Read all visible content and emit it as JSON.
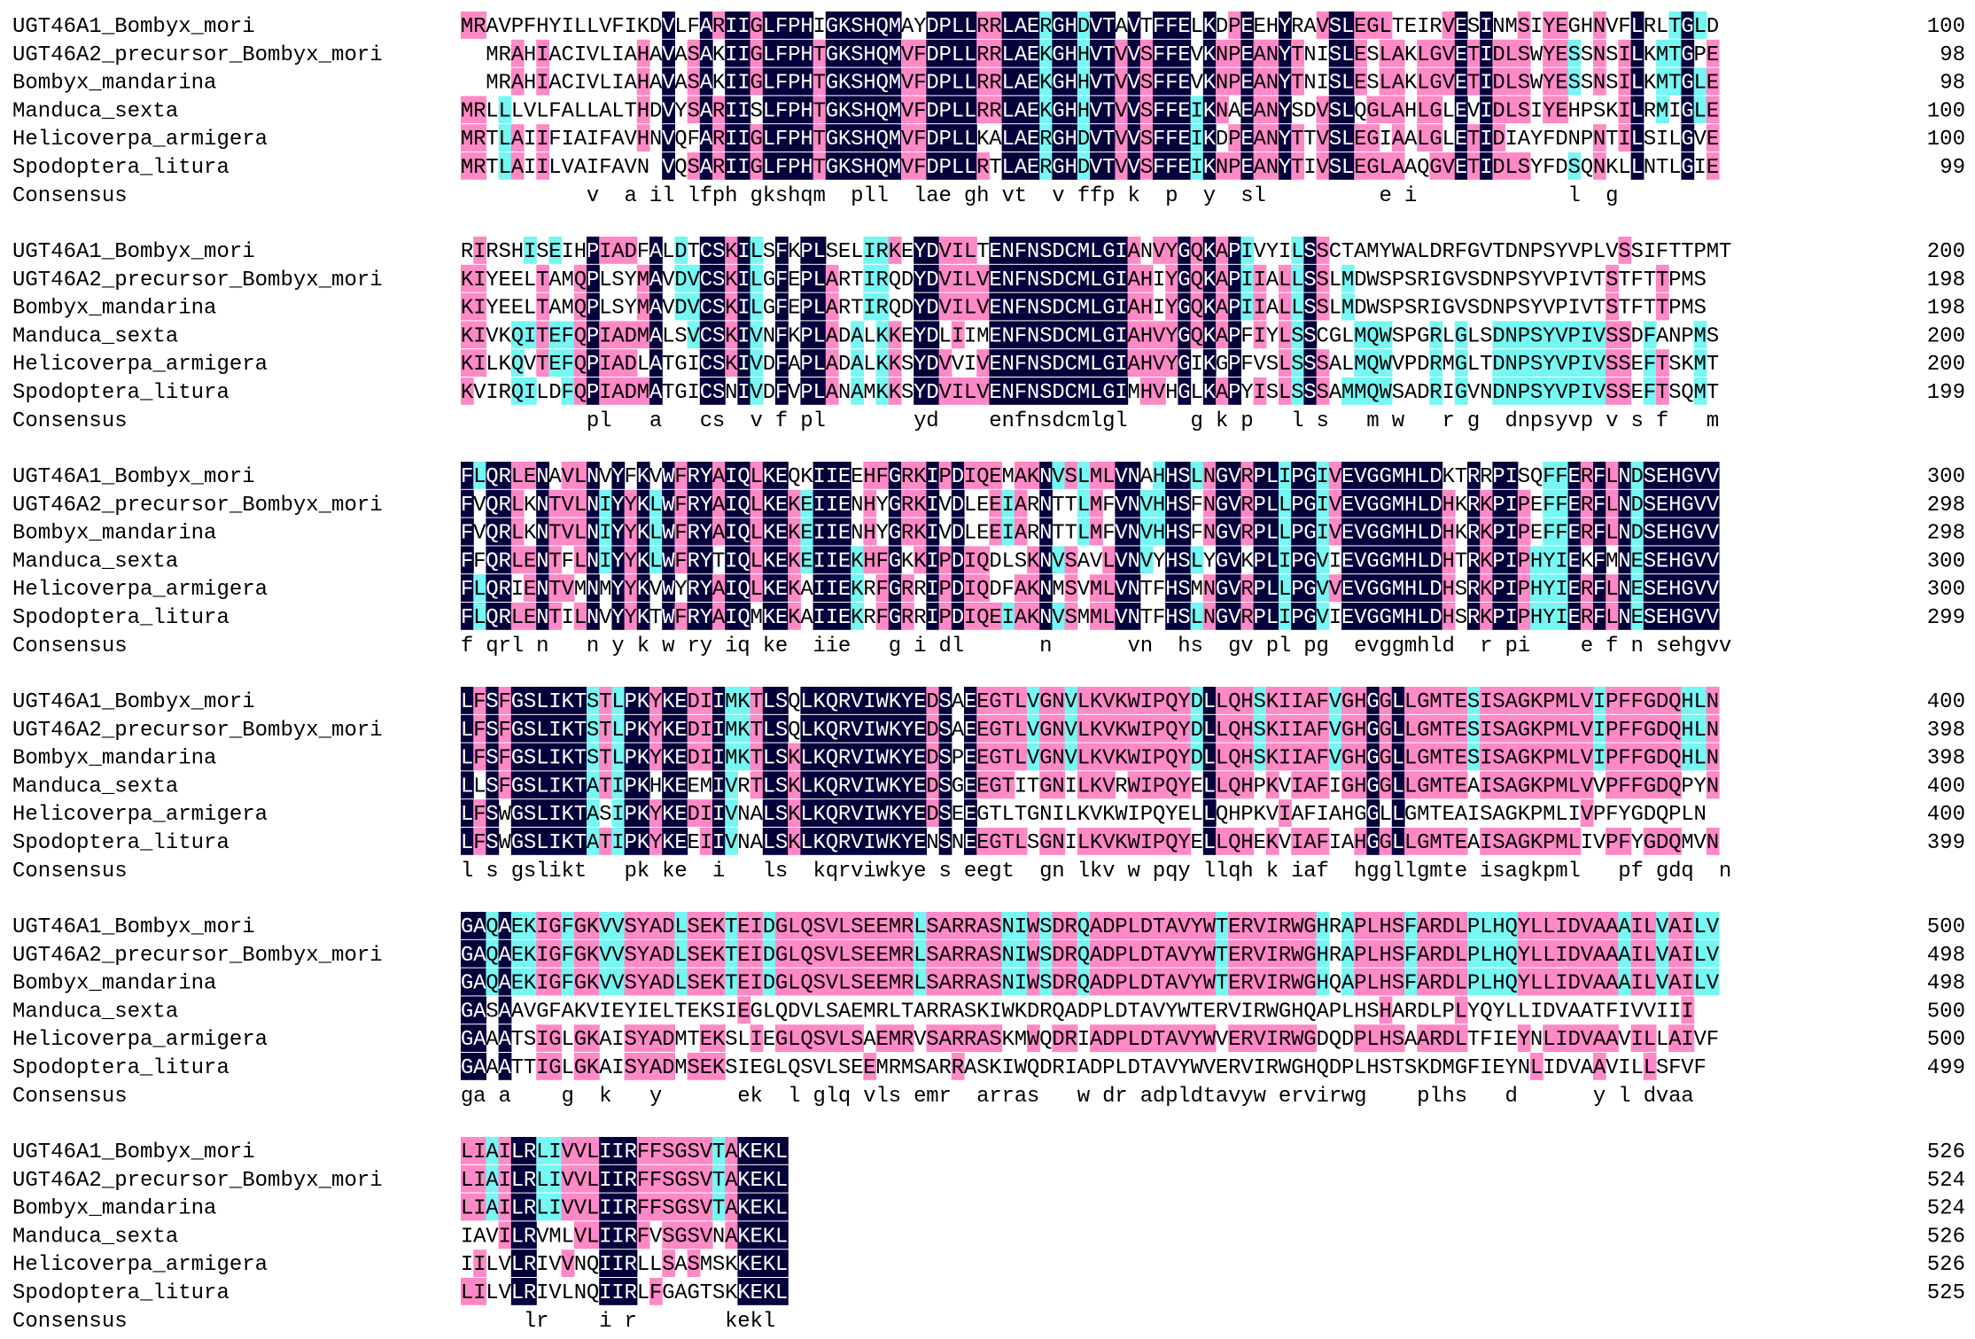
{
  "colors": {
    "identical_bg": "#03003b",
    "identical_fg": "#ffffff",
    "high_bg": "#ff88c6",
    "medium_bg": "#75f7f3",
    "default_fg": "#000000"
  },
  "consensus_label": "Consensus",
  "blocks": [
    {
      "rows": [
        {
          "name": "UGT46A1_Bombyx_mori",
          "seq": "MRAVPFHYILLVFIKDVLFARIIGLFPHIGKSHQMAYDPLLRRLAERGHDVTAVTFFELKDPEEHYRAVSLEGLTEIRVESINMSIYEGHNVFLRLTGLD",
          "end": "100"
        },
        {
          "name": "UGT46A2_precursor_Bombyx_mori",
          "seq": "..MRAHIACIVLIAHAVASAKIIGLFPHTGKSHQMVFDPLLRRLAEKGHHVTVVSFFEVKNPEANYTNISLESLAKLGVETIDLSWYESSNSILKMTGPE",
          "end": "98"
        },
        {
          "name": "Bombyx_mandarina",
          "seq": "..MRAHIACIVLIAHAVASAKIIGLFPHTGKSHQMVFDPLLRRLAEKGHHVTVVSFFEVKNPEANYTNISLESLAKLGVETIDLSWYESSNSILKMTGLE",
          "end": "98"
        },
        {
          "name": "Manduca_sexta",
          "seq": "MRLLLVLFALLALTHDVYSARIISLFPHTGKSHQMVFDPLLRRLAEKGHHVTVVSFFEIKNAEANYSDVSLQGLAHLGLEVIDLSIYEHPSKILRMIGLE",
          "end": "100"
        },
        {
          "name": "Helicoverpa_armigera",
          "seq": "MRTLAIIFIAIFAVHNVQFARIIGLFPHTGKSHQMVFDPLLKALAERGHDVTVVSFFEIKDPEANYTTVSLEGIAALGLETIDIAYFDNPNTILSILGVE",
          "end": "100"
        },
        {
          "name": "Spodoptera_litura",
          "seq": "MRTLAIILVAIFAVN.VQSARIIGLFPHTGKSHQMVFDPLLRTLAERGHDVTVVSFFEIKNPEANYTIVSLEGLAAQGVETIDLSYFDSQNKLLNTLGIE",
          "end": "99"
        }
      ],
      "consensus": "          v  a il lfph gkshqm  pll  lae gh vt  v ffp k  p  y  sl         e i            l  g  "
    },
    {
      "rows": [
        {
          "name": "UGT46A1_Bombyx_mori",
          "seq": "RIRSHISEIHPIADFALDTCSKILSFKPLSELIRKEYDVILTENFNSDCMLGIANVYGQKAPIVYILSSCTAMYWALDRFGVTDNPSYVPLVSSIFTTPMT",
          "end": "200"
        },
        {
          "name": "UGT46A2_precursor_Bombyx_mori",
          "seq": "KIYEELTAMQPLSYMAVDVCSKILGFEPLARTIRQDYDVILVENFNSDCMLGIAHIYGQKAPIIALLSSLMDWSPSRIGVSDNPSYVPIVTSTFTTPMS",
          "end": "198"
        },
        {
          "name": "Bombyx_mandarina",
          "seq": "KIYEELTAMQPLSYMAVDVCSKILGFEPLARTIRQDYDVILVENFNSDCMLGIAHIYGQKAPIIALLSSLMDWSPSRIGVSDNPSYVPIVTSTFTTPMS",
          "end": "198"
        },
        {
          "name": "Manduca_sexta",
          "seq": "KIVKQITEFQPIADMALSVCSKIVNFKPLADALKKEYDLIIMENFNSDCMLGIAHVYGQKAPFIYLSSCGLMQWSPGRLGLSDNPSYVPIVSSDFANPMS",
          "end": "200"
        },
        {
          "name": "Helicoverpa_armigera",
          "seq": "KILKQVTEFQPIADLATGICSKIVDFAPLADALKKSYDVVIVENFNSDCMLGIAHVYGIKGPFVSLSSSALMQWVPDRMGLTDNPSYVPIVSSEFTSKMT",
          "end": "200"
        },
        {
          "name": "Spodoptera_litura",
          "seq": "KVIRQILDFQPIADMATGICSNIVDFVPLANAMKKSYDVILVENFNSDCMLGIMHVHGLKAPYISLSSSAMMQWSADRIGVNDNPSYVPIVSSEFTSQMT",
          "end": "199"
        }
      ],
      "consensus": "          pl   a   cs  v f pl       yd    enfnsdcmlgl     g k p   l s   m w   r g  dnpsyvp v s f   m "
    },
    {
      "rows": [
        {
          "name": "UGT46A1_Bombyx_mori",
          "seq": "FLQRLENAVLNVYFKVWFRYAIQLKEQKIIEEHFGRKIPDIQEMAKNVSLMLVNAHHSLNGVRPLIPGIVEVGGMHLDKTRRPISQFFERFLNDSEHGVV",
          "end": "300"
        },
        {
          "name": "UGT46A2_precursor_Bombyx_mori",
          "seq": "FVQRLKNTVLNIYYKLWFRYAIQLKEKEIIENHYGRKIVDLEEIARNTTLMFVNVHHSFNGVRPLLPGIVEVGGMHLDHKRKPIPEFFERFLNDSEHGVV",
          "end": "298"
        },
        {
          "name": "Bombyx_mandarina",
          "seq": "FVQRLKNTVLNIYYKLWFRYAIQLKEKEIIENHYGRKIVDLEEIARNTTLMFVNVHHSFNGVRPLLPGIVEVGGMHLDHKRKPIPEFFERFLNDSEHGVV",
          "end": "298"
        },
        {
          "name": "Manduca_sexta",
          "seq": "FFQRLENTFLNIYYKLWFRYTIQLKEKEIIEKHFGKKIPDIQDLSKNVSAVLVNVYHSLYGVKPLIPGVIEVGGMHLDHTRKPIPHYIEKFMNESEHGVV",
          "end": "300"
        },
        {
          "name": "Helicoverpa_armigera",
          "seq": "FLQRIENTVMNMYYKVWYRYAIQLKEKAIIEKRFGRRIPDIQDFAKNMSVMLVNTFHSMNGVRPLLPGVVEVGGMHLDHSRKPIPHYIERFLNESEHGVV",
          "end": "300"
        },
        {
          "name": "Spodoptera_litura",
          "seq": "FLQRLENTILNVYYKTWFRYAIQMKEKAIIEKRFGRRIPDIQEIAKNVSMMLVNTFHSLNGVRPLIPGVIEVGGMHLDHSRKPIPHYIERFLNESEHGVV",
          "end": "299"
        }
      ],
      "consensus": "f qrl n   n y k w ry iq ke  iie   g i dl      n      vn  hs  gv pl pg  evggmhld  r pi    e f n sehgvv"
    },
    {
      "rows": [
        {
          "name": "UGT46A1_Bombyx_mori",
          "seq": "LFSFGSLIKTSTLPKYKEDIIMKTLSQLKQRVIWKYEDSAEEGTLVGNVLKVKWIPQYDLLQHSKIIAFVGHGGLLGMTESISAGKPMLVIPFFGDQHLN",
          "end": "400"
        },
        {
          "name": "UGT46A2_precursor_Bombyx_mori",
          "seq": "LFSFGSLIKTSTLPKYKEDIIMKTLSQLKQRVIWKYEDSAEEGTLVGNVLKVKWIPQYDLLQHSKIIAFVGHGGLLGMTESISAGKPMLVIPFFGDQHLN",
          "end": "398"
        },
        {
          "name": "Bombyx_mandarina",
          "seq": "LFSFGSLIKTSTLPKYKEDIIMKTLSKLKQRVIWKYEDSPEEGTLVGNVLKVKWIPQYDLLQHSKIIAFVGHGGLLGMTESISAGKPMLVIPFFGDQHLN",
          "end": "398"
        },
        {
          "name": "Manduca_sexta",
          "seq": "LLSFGSLIKTATIPKHKEEMIVRTLSKLKQRVIWKYEDSGEEGTITGNILKVRWIPQYELLQHPKVIAFIGHGGLLGMTEAISAGKPMLVVPFFGDQPYN",
          "end": "400"
        },
        {
          "name": "Helicoverpa_armigera",
          "seq": "LFSWGSLIKTASIPKYKEDIIVNALSKLKQRVIWKYEDSEEGTLTGNILKVKWIPQYELLQHPKVIAFIAHGGLLGMTEAISAGKPMLIVPFYGDQPLN",
          "end": "400"
        },
        {
          "name": "Spodoptera_litura",
          "seq": "LFSWGSLIKTATIPKYKEEIIVNALSKLKQRVIWKYENSNEEGTLSGNILKVKWIPQYELLQHEKVIAFIAHGGLLGMTEAISAGKPMLIVPFYGDQMVN",
          "end": "399"
        }
      ],
      "consensus": "l s gslikt   pk ke  i   ls  kqrviwkye s eegt  gn lkv w pqy llqh k iaf  hggllgmte isagkpml   pf gdq  n"
    },
    {
      "rows": [
        {
          "name": "UGT46A1_Bombyx_mori",
          "seq": "GAQAEKIGFGKVVSYADLSEKTEIDGLQSVLSEEMRLSARRASNIWSDRQADPLDTAVYWTERVIRWGHRAPLHSFARDLPLHQYLLIDVAAAILVAILV",
          "end": "500"
        },
        {
          "name": "UGT46A2_precursor_Bombyx_mori",
          "seq": "GAQAEKIGFGKVVSYADLSEKTEIDGLQSVLSEEMRLSARRASNIWSDRQADPLDTAVYWTERVIRWGHRAPLHSFARDLPLHQYLLIDVAAAILVAILV",
          "end": "498"
        },
        {
          "name": "Bombyx_mandarina",
          "seq": "GAQAEKIGFGKVVSYADLSEKTEIDGLQSVLSEEMRLSARRASNIWSDRQADPLDTAVYWTERVIRWGHQAPLHSFARDLPLHQYLLIDVAAAILVAILV",
          "end": "498"
        },
        {
          "name": "Manduca_sexta",
          "seq": "GASAAVGFAKVIEYIELTEKSIEGLQDVLSAEMRLTARRASKIWKDRQADPLDTAVYWTERVIRWGHQAPLHSHARDLPLYQYLLIDVAATFIVVIII",
          "end": "500"
        },
        {
          "name": "Helicoverpa_armigera",
          "seq": "GAAATSIGLGKAISYADMTEKSLIEGLQSVLSAEMRVSARRASKMWQDRIADPLDTAVYWVERVIRWGDQDPLHSAARDLTFIEYNLIDVAAVILLAIVF",
          "end": "500"
        },
        {
          "name": "Spodoptera_litura",
          "seq": "GAAATTIGLGKAISYADMSEKSIEGLQSVLSEEMRMSARRASKIWQDRIADPLDTAVYWVERVIRWGHQDPLHSTSKDMGFIEYNLIDVAAVILLSFVF",
          "end": "499"
        }
      ],
      "consensus": "ga a    g  k   y      ek  l glq vls emr  arras   w dr adpldtavyw ervirwg    plhs   d      y l dvaa    "
    },
    {
      "rows": [
        {
          "name": "UGT46A1_Bombyx_mori",
          "seq": "LIAILRLIVVLIIRFFSGSVTAKEKL",
          "end": "526"
        },
        {
          "name": "UGT46A2_precursor_Bombyx_mori",
          "seq": "LIAILRLIVVLIIRFFSGSVTAKEKL",
          "end": "524"
        },
        {
          "name": "Bombyx_mandarina",
          "seq": "LIAILRLIVVLIIRFFSGSVTAKEKL",
          "end": "524"
        },
        {
          "name": "Manduca_sexta",
          "seq": "IAVILRVMLVLIIRFVSGSVNAKEKL",
          "end": "526"
        },
        {
          "name": "Helicoverpa_armigera",
          "seq": "IILVLRIVVNQIIRLLSASMSKKEKL",
          "end": "526"
        },
        {
          "name": "Spodoptera_litura",
          "seq": "LILVLRIVLNQIIRLFGAGTSKKEKL",
          "end": "525"
        }
      ],
      "consensus": "     lr    i r       kekl"
    }
  ]
}
